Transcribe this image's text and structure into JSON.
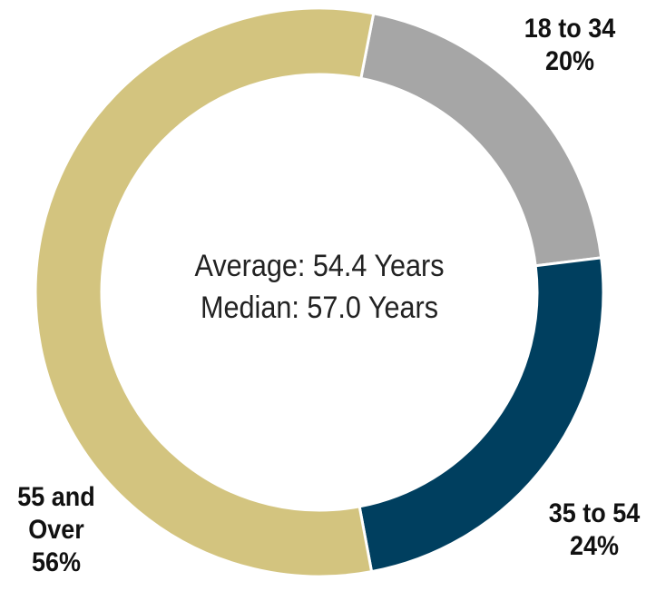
{
  "chart_data": {
    "type": "donut",
    "categories": [
      "18 to 34",
      "35 to 54",
      "55 and Over"
    ],
    "values": [
      20,
      24,
      56
    ],
    "value_labels": [
      "20%",
      "24%",
      "56%"
    ],
    "colors": [
      "#a6a6a6",
      "#003f5f",
      "#d3c47f"
    ],
    "start_angle": 11,
    "annotations": [
      "Average: 54.4 Years",
      "Median: 57.0 Years"
    ]
  }
}
